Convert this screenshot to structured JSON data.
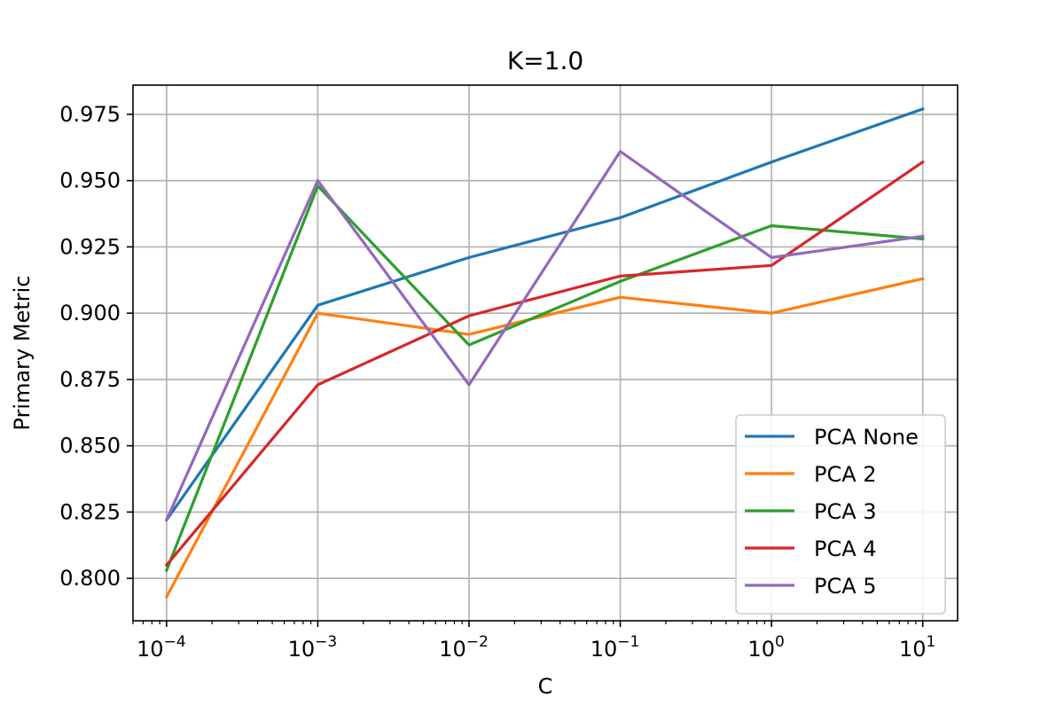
{
  "chart_data": {
    "type": "line",
    "title": "K=1.0",
    "xlabel": "C",
    "ylabel": "Primary Metric",
    "xscale": "log",
    "x": [
      0.0001,
      0.001,
      0.01,
      0.1,
      1,
      10
    ],
    "x_tick_labels": [
      {
        "base": "10",
        "exp": "−4"
      },
      {
        "base": "10",
        "exp": "−3"
      },
      {
        "base": "10",
        "exp": "−2"
      },
      {
        "base": "10",
        "exp": "−1"
      },
      {
        "base": "10",
        "exp": "0"
      },
      {
        "base": "10",
        "exp": "1"
      }
    ],
    "y_ticks": [
      0.8,
      0.825,
      0.85,
      0.875,
      0.9,
      0.925,
      0.95,
      0.975
    ],
    "y_tick_labels": [
      "0.800",
      "0.825",
      "0.850",
      "0.875",
      "0.900",
      "0.925",
      "0.950",
      "0.975"
    ],
    "xlim": [
      6e-05,
      17
    ],
    "ylim": [
      0.784,
      0.986
    ],
    "grid": true,
    "legend_position": "lower-right",
    "series": [
      {
        "name": "PCA None",
        "color": "#1f77b4",
        "values": [
          0.822,
          0.903,
          0.921,
          0.936,
          0.957,
          0.977
        ]
      },
      {
        "name": "PCA 2",
        "color": "#ff7f0e",
        "values": [
          0.793,
          0.9,
          0.892,
          0.906,
          0.9,
          0.913
        ]
      },
      {
        "name": "PCA 3",
        "color": "#2ca02c",
        "values": [
          0.803,
          0.948,
          0.888,
          0.912,
          0.933,
          0.928
        ]
      },
      {
        "name": "PCA 4",
        "color": "#d62728",
        "values": [
          0.805,
          0.873,
          0.899,
          0.914,
          0.918,
          0.957
        ]
      },
      {
        "name": "PCA 5",
        "color": "#9467bd",
        "values": [
          0.822,
          0.95,
          0.873,
          0.961,
          0.921,
          0.929
        ]
      }
    ]
  }
}
